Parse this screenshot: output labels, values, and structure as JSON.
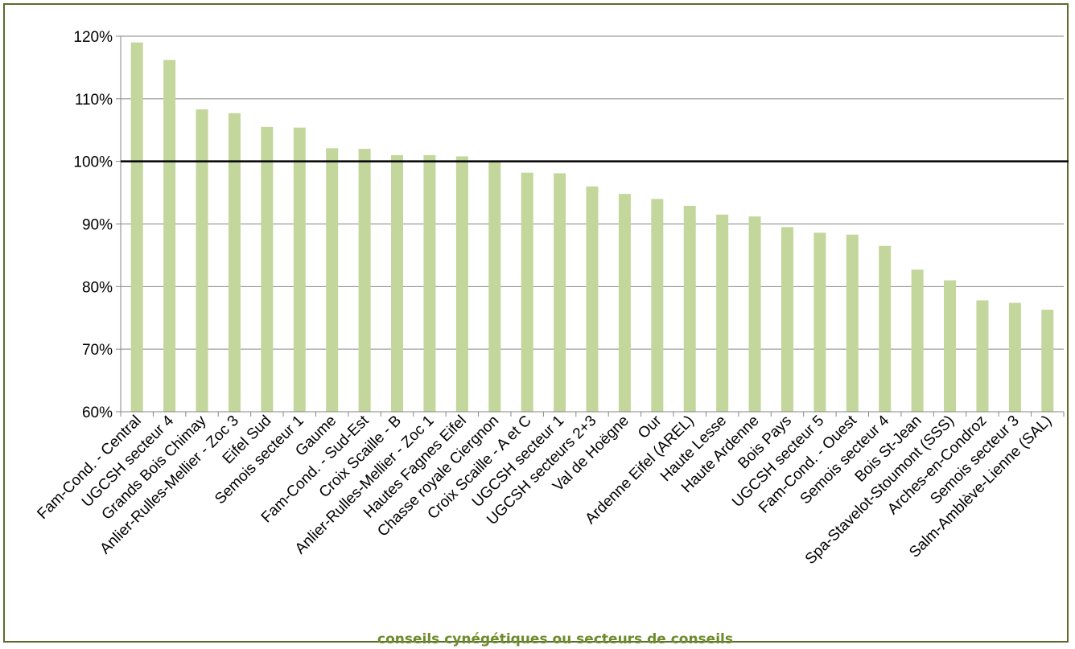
{
  "chart_data": {
    "type": "bar",
    "xlabel": "conseils cynégétiques ou secteurs de conseils",
    "ylabel": "",
    "ylim": [
      60,
      120
    ],
    "ytick_step": 10,
    "reference_line": 100,
    "bar_color": "#c3d69b",
    "axis_color": "#868686",
    "reference_color": "#000000",
    "categories": [
      "Fam-Cond. - Central",
      "UGCSH secteur 4",
      "Grands Bois Chimay",
      "Anlier-Rulles-Mellier - Zoc 3",
      "Eifel Sud",
      "Semois secteur 1",
      "Gaume",
      "Fam-Cond. - Sud-Est",
      "Croix Scaille - B",
      "Anlier-Rulles-Mellier - Zoc 1",
      "Hautes Fagnes Eifel",
      "Chasse royale Ciergnon",
      "Croix Scaille - A et C",
      "UGCSH secteur 1",
      "UGCSH secteurs 2+3",
      "Val de Hoëgne",
      "Our",
      "Ardenne Eifel (AREL)",
      "Haute Lesse",
      "Haute Ardenne",
      "Bois Pays",
      "UGCSH secteur 5",
      "Fam-Cond. - Ouest",
      "Semois secteur 4",
      "Bois St-Jean",
      "Spa-Stavelot-Stoumont (SSS)",
      "Arches-en-Condroz",
      "Semois secteur 3",
      "Salm-Amblève-Lienne (SAL)"
    ],
    "values": [
      119,
      116.2,
      108.3,
      107.7,
      105.5,
      105.4,
      102.1,
      102,
      101,
      101,
      100.8,
      100,
      98.2,
      98.1,
      96,
      94.8,
      94,
      92.9,
      91.5,
      91.2,
      89.5,
      88.6,
      88.3,
      86.5,
      82.7,
      81,
      77.8,
      77.4,
      76.3
    ]
  }
}
